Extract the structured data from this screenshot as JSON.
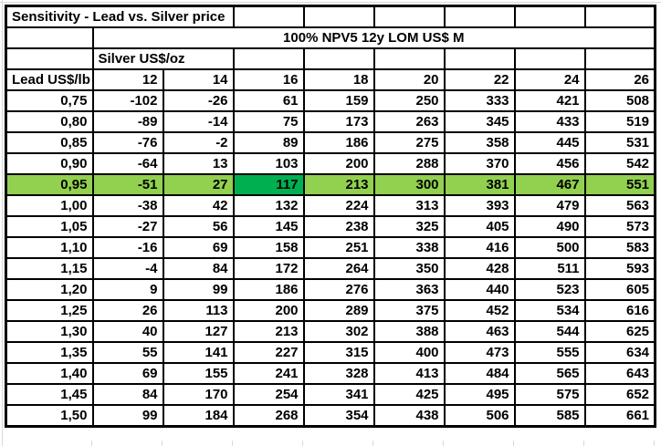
{
  "title": "Sensitivity - Lead vs. Silver price",
  "npv_header": "100% NPV5 12y LOM US$ M",
  "silver_label": "Silver US$/oz",
  "lead_label": "Lead US$/lb",
  "colors": {
    "highlight_row": "#92d050",
    "highlight_cell": "#00b050",
    "shaded_cell": "#efefef",
    "border": "#000000"
  },
  "chart_data": {
    "type": "table",
    "title": "Sensitivity - Lead vs. Silver price",
    "subtitle": "100% NPV5 12y LOM US$ M",
    "column_axis_label": "Silver US$/oz",
    "row_axis_label": "Lead US$/lb",
    "columns": [
      "12",
      "14",
      "16",
      "18",
      "20",
      "22",
      "24",
      "26"
    ],
    "rows": [
      {
        "lead": "0,75",
        "values": [
          -102,
          -26,
          61,
          159,
          250,
          333,
          421,
          508
        ]
      },
      {
        "lead": "0,80",
        "values": [
          -89,
          -14,
          75,
          173,
          263,
          345,
          433,
          519
        ]
      },
      {
        "lead": "0,85",
        "values": [
          -76,
          -2,
          89,
          186,
          275,
          358,
          445,
          531
        ]
      },
      {
        "lead": "0,90",
        "values": [
          -64,
          13,
          103,
          200,
          288,
          370,
          456,
          542
        ]
      },
      {
        "lead": "0,95",
        "values": [
          -51,
          27,
          117,
          213,
          300,
          381,
          467,
          551
        ]
      },
      {
        "lead": "1,00",
        "values": [
          -38,
          42,
          132,
          224,
          313,
          393,
          479,
          563
        ]
      },
      {
        "lead": "1,05",
        "values": [
          -27,
          56,
          145,
          238,
          325,
          405,
          490,
          573
        ]
      },
      {
        "lead": "1,10",
        "values": [
          -16,
          69,
          158,
          251,
          338,
          416,
          500,
          583
        ]
      },
      {
        "lead": "1,15",
        "values": [
          -4,
          84,
          172,
          264,
          350,
          428,
          511,
          593
        ]
      },
      {
        "lead": "1,20",
        "values": [
          9,
          99,
          186,
          276,
          363,
          440,
          523,
          605
        ]
      },
      {
        "lead": "1,25",
        "values": [
          26,
          113,
          200,
          289,
          375,
          452,
          534,
          616
        ]
      },
      {
        "lead": "1,30",
        "values": [
          40,
          127,
          213,
          302,
          388,
          463,
          544,
          625
        ]
      },
      {
        "lead": "1,35",
        "values": [
          55,
          141,
          227,
          315,
          400,
          473,
          555,
          634
        ]
      },
      {
        "lead": "1,40",
        "values": [
          69,
          155,
          241,
          328,
          413,
          484,
          565,
          643
        ]
      },
      {
        "lead": "1,45",
        "values": [
          84,
          170,
          254,
          341,
          425,
          495,
          575,
          652
        ]
      },
      {
        "lead": "1,50",
        "values": [
          99,
          184,
          268,
          354,
          438,
          506,
          585,
          661
        ]
      }
    ],
    "highlighted_row": "0,95",
    "highlighted_cell": {
      "row": "0,95",
      "column": "16",
      "value": 117
    },
    "shaded_cells": [
      {
        "row": "column-header",
        "column": "14"
      },
      {
        "row": "0,75",
        "column": "14"
      },
      {
        "row": "0,80",
        "column": "14"
      }
    ]
  }
}
